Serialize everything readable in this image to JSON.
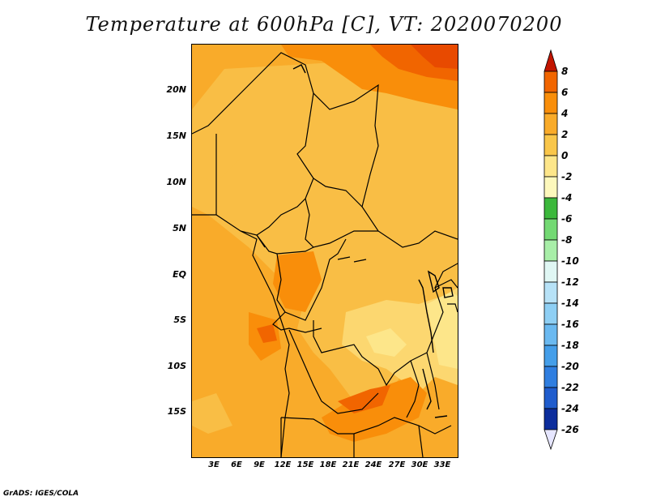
{
  "title": "Temperature at 600hPa [C], VT: 2020070200",
  "credit": "GrADS: IGES/COLA",
  "map": {
    "lat_labels": [
      "20N",
      "15N",
      "10N",
      "5N",
      "EQ",
      "5S",
      "10S",
      "15S"
    ],
    "lon_labels": [
      "3E",
      "6E",
      "9E",
      "12E",
      "15E",
      "18E",
      "21E",
      "24E",
      "27E",
      "30E",
      "33E"
    ]
  },
  "colorbar": {
    "labels": [
      "8",
      "6",
      "4",
      "2",
      "0",
      "-2",
      "-4",
      "-6",
      "-8",
      "-10",
      "-12",
      "-14",
      "-16",
      "-18",
      "-20",
      "-22",
      "-24",
      "-26"
    ],
    "colors": [
      "#e23400",
      "#f16500",
      "#f98e0a",
      "#f9ab2a",
      "#f9c64a",
      "#fde68a",
      "#fdf8bc",
      "#3cb83c",
      "#73d973",
      "#a8eea8",
      "#e0f7f4",
      "#b7e2f7",
      "#8ecff4",
      "#6ab9f0",
      "#449ee9",
      "#2f7ee0",
      "#1f5ccd",
      "#0c2d9c"
    ],
    "end_colors": {
      "top": "#c21500",
      "bottom": "#e6e6ff"
    }
  }
}
